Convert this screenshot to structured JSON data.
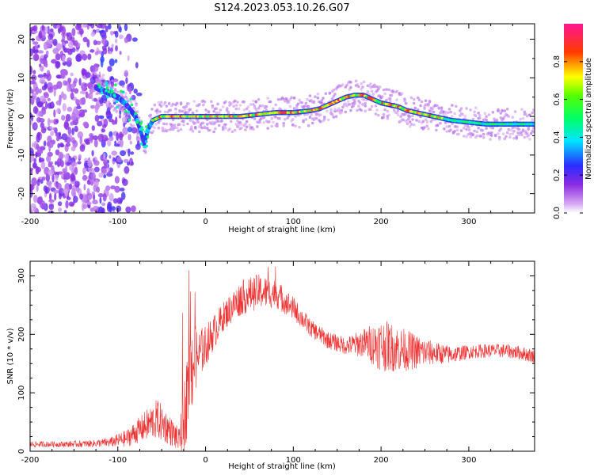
{
  "title": "S124.2023.053.10.26.G07",
  "chart_data": [
    {
      "type": "heatmap",
      "xlabel": "Height of straight line (km)",
      "ylabel": "Frequency (Hz)",
      "xlim": [
        -200,
        375
      ],
      "ylim": [
        -25,
        24
      ],
      "x_ticks": [
        -200,
        -100,
        0,
        100,
        200,
        300
      ],
      "y_ticks": [
        -20,
        -10,
        0,
        10,
        20
      ],
      "colorbar": {
        "label": "Normalized spectral amplitude",
        "ticks": [
          0.0,
          0.2,
          0.4,
          0.6,
          0.8
        ],
        "tick_labels": [
          "0.0",
          "0.2",
          "0.4",
          "0.6",
          "0.8"
        ],
        "range": [
          0,
          1
        ],
        "colors": [
          "#ffffff",
          "#8a2be2",
          "#2b2bff",
          "#00e5ff",
          "#00ff00",
          "#ffff00",
          "#ff0000",
          "#ff1493"
        ]
      },
      "ridge": {
        "x": [
          -130,
          -120,
          -110,
          -100,
          -90,
          -80,
          -75,
          -70,
          -65,
          -60,
          -50,
          -40,
          -30,
          -20,
          0,
          20,
          40,
          60,
          80,
          100,
          120,
          130,
          140,
          150,
          160,
          170,
          180,
          190,
          200,
          210,
          220,
          230,
          240,
          250,
          260,
          270,
          280,
          300,
          320,
          340,
          360,
          375
        ],
        "y": [
          8,
          7,
          6,
          5,
          3,
          0,
          -3,
          -7,
          -3,
          -1,
          0,
          0,
          0,
          0,
          0,
          0,
          0,
          0.5,
          1,
          1,
          1.5,
          2,
          3,
          4,
          5,
          5.5,
          5.5,
          4.5,
          3.5,
          3,
          2.5,
          1.5,
          1,
          0.5,
          0,
          -0.5,
          -1,
          -1.5,
          -2,
          -2,
          -2,
          -2
        ]
      }
    },
    {
      "type": "line",
      "xlabel": "Height of straight line (km)",
      "ylabel": "SNR (10 * v/v)",
      "xlim": [
        -200,
        375
      ],
      "ylim": [
        0,
        325
      ],
      "x_ticks": [
        -200,
        -100,
        0,
        100,
        200,
        300
      ],
      "y_ticks": [
        0,
        100,
        200,
        300
      ],
      "color": "#ee3333",
      "envelope": {
        "x": [
          -200,
          -160,
          -130,
          -110,
          -90,
          -70,
          -55,
          -40,
          -30,
          -25,
          -20,
          -15,
          -10,
          0,
          20,
          40,
          60,
          80,
          100,
          120,
          140,
          160,
          180,
          200,
          220,
          240,
          260,
          280,
          300,
          320,
          340,
          360,
          375
        ],
        "mean": [
          12,
          12,
          13,
          15,
          22,
          42,
          55,
          35,
          18,
          50,
          110,
          150,
          160,
          180,
          230,
          262,
          273,
          270,
          245,
          210,
          190,
          180,
          185,
          182,
          175,
          170,
          168,
          165,
          170,
          172,
          172,
          168,
          162
        ],
        "spread": [
          5,
          5,
          6,
          8,
          15,
          25,
          35,
          25,
          20,
          60,
          80,
          80,
          50,
          35,
          25,
          30,
          30,
          25,
          20,
          15,
          15,
          15,
          25,
          45,
          40,
          30,
          20,
          15,
          12,
          12,
          12,
          12,
          12
        ]
      }
    }
  ]
}
